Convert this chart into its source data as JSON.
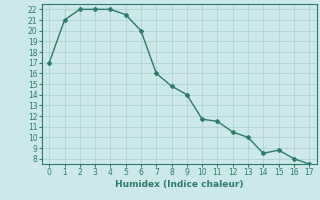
{
  "x": [
    0,
    1,
    2,
    3,
    4,
    5,
    6,
    7,
    8,
    9,
    10,
    11,
    12,
    13,
    14,
    15,
    16,
    17
  ],
  "y": [
    17,
    21,
    22,
    22,
    22,
    21.5,
    20,
    16,
    14.8,
    14,
    11.7,
    11.5,
    10.5,
    10,
    8.5,
    8.8,
    8,
    7.5
  ],
  "line_color": "#2d7a6e",
  "marker": "D",
  "marker_size": 2,
  "linewidth": 1.0,
  "xlabel": "Humidex (Indice chaleur)",
  "xlim": [
    -0.5,
    17.5
  ],
  "ylim": [
    7.5,
    22.5
  ],
  "xticks": [
    0,
    1,
    2,
    3,
    4,
    5,
    6,
    7,
    8,
    9,
    10,
    11,
    12,
    13,
    14,
    15,
    16,
    17
  ],
  "yticks": [
    8,
    9,
    10,
    11,
    12,
    13,
    14,
    15,
    16,
    17,
    18,
    19,
    20,
    21,
    22
  ],
  "background_color": "#cce8e8",
  "grid_color": "#aacece",
  "tick_fontsize": 5.5,
  "xlabel_fontsize": 6.5
}
